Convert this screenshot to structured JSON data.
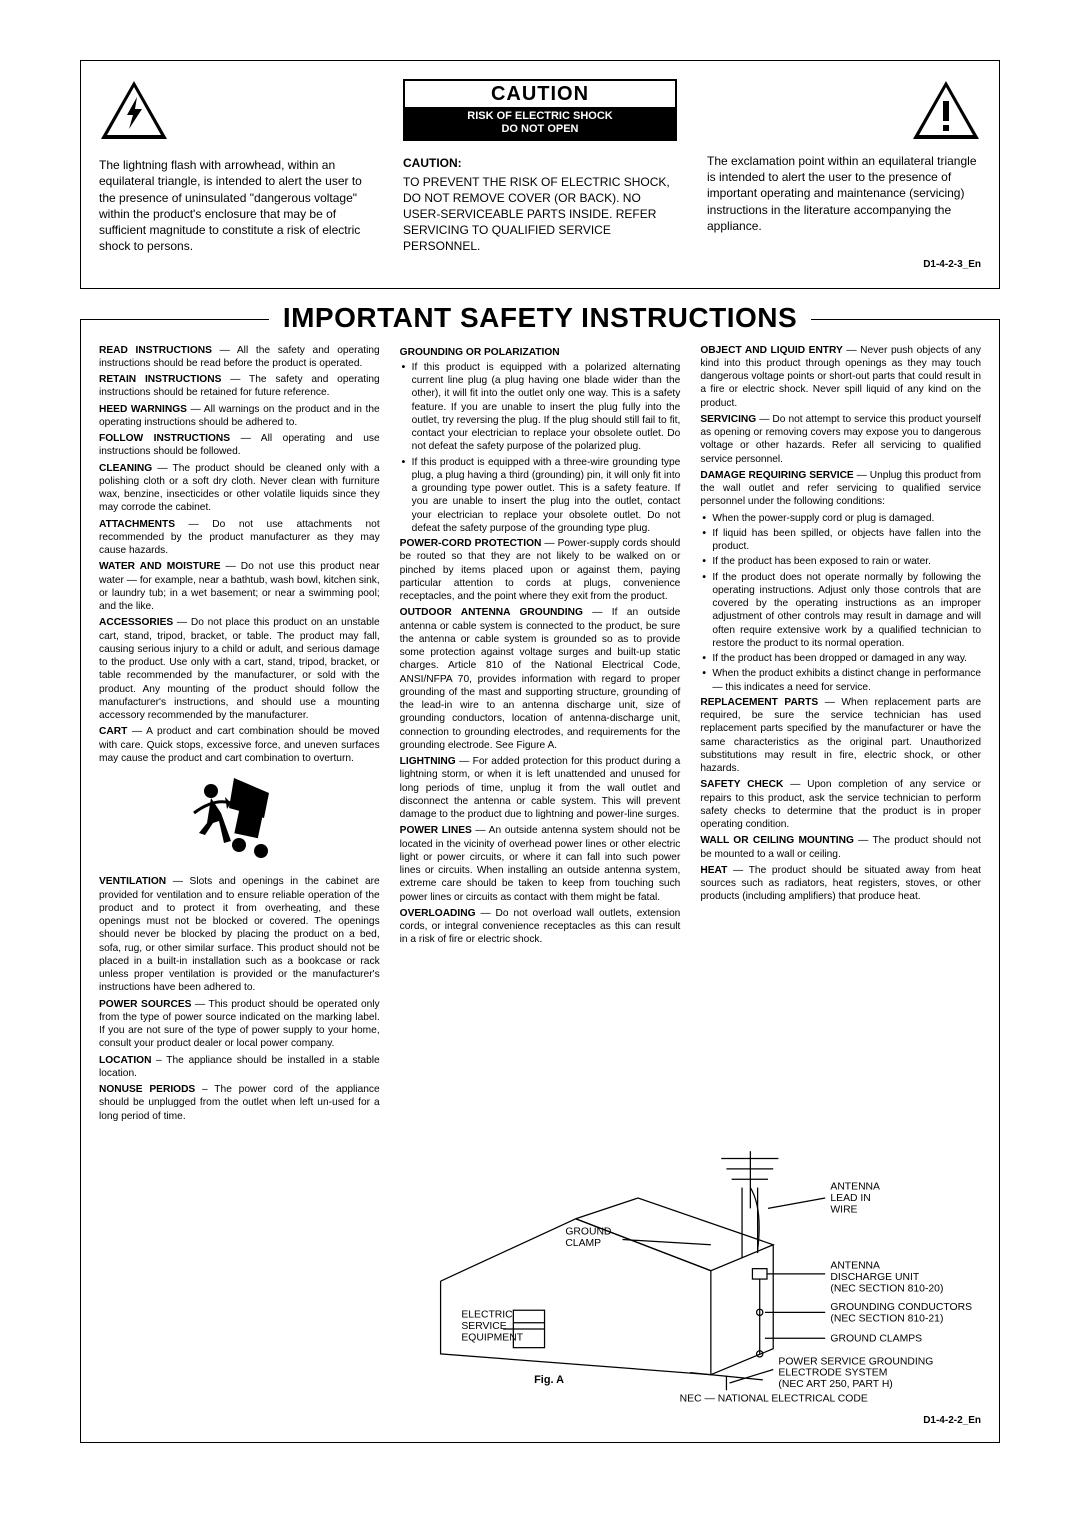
{
  "caution": {
    "title": "CAUTION",
    "sub1": "RISK OF ELECTRIC SHOCK",
    "sub2": "DO NOT OPEN",
    "left_text": "The lightning flash with arrowhead, within an equilateral triangle, is intended to alert the user to the presence of uninsulated \"dangerous voltage\" within the product's enclosure that may be of sufficient magnitude to constitute a risk of electric shock to persons.",
    "center_head": "CAUTION:",
    "center_text": "TO PREVENT THE RISK OF ELECTRIC SHOCK, DO NOT REMOVE COVER (OR BACK).  NO USER-SERVICEABLE PARTS INSIDE.  REFER SERVICING TO QUALIFIED SERVICE PERSONNEL.",
    "right_text": "The exclamation point within an equilateral triangle is intended to alert the user to the presence of important operating and maintenance (servicing) instructions in the literature accompanying the appliance.",
    "code": "D1-4-2-3_En"
  },
  "main": {
    "title": "IMPORTANT SAFETY INSTRUCTIONS",
    "code": "D1-4-2-2_En",
    "fig_a": "Fig. A",
    "nec": "NEC — NATIONAL ELECTRICAL CODE",
    "col1": [
      {
        "h": "READ INSTRUCTIONS",
        "t": " — All the safety and operating instructions should be read before the product is operated."
      },
      {
        "h": "RETAIN INSTRUCTIONS",
        "t": " — The safety and operating instructions should be retained for future reference."
      },
      {
        "h": "HEED WARNINGS",
        "t": " — All warnings on the product and in the operating instructions should be adhered to."
      },
      {
        "h": "FOLLOW INSTRUCTIONS",
        "t": " — All operating and use instructions should be followed."
      },
      {
        "h": "CLEANING",
        "t": " — The product should be cleaned only with a polishing cloth or a soft dry cloth. Never clean with furniture wax, benzine, insecticides or other volatile liquids since they may corrode the cabinet."
      },
      {
        "h": "ATTACHMENTS",
        "t": " — Do not use attachments not recommended by the product manufacturer as they may cause hazards."
      },
      {
        "h": "WATER AND MOISTURE",
        "t": " — Do not use this product near water — for example, near a bathtub, wash bowl, kitchen sink, or laundry tub; in a wet basement; or near a swimming pool; and the like."
      },
      {
        "h": "ACCESSORIES",
        "t": " — Do not place this product on an unstable cart, stand, tripod, bracket, or table. The product may fall, causing serious injury to a child or adult, and serious damage to the product. Use only with a cart, stand, tripod, bracket, or table recommended by the manufacturer, or sold with the product. Any mounting of the product should follow the manufacturer's instructions, and should use a mounting accessory recommended by the manufacturer."
      },
      {
        "h": "CART",
        "t": " — A product and cart combination should be moved with care. Quick stops, excessive force, and uneven surfaces may cause the product and cart combination to overturn."
      },
      {
        "h": "VENTILATION",
        "t": " — Slots and openings in the cabinet are provided for ventilation and to ensure reliable operation of the product and to protect it from overheating, and these openings must not be blocked or covered. The openings should never be blocked by placing the product on a bed, sofa, rug, or other similar surface. This product should not be placed in a built-in installation such as a bookcase or rack unless proper ventilation is provided or the manufacturer's instructions have been adhered to."
      },
      {
        "h": "POWER SOURCES",
        "t": " — This product should be operated only from the type of power source indicated on the marking label. If you are not sure of the type of power supply to your home, consult your product dealer or local power company."
      },
      {
        "h": "LOCATION",
        "t": " – The appliance should be installed in a stable location."
      },
      {
        "h": "NONUSE PERIODS",
        "t": " – The power cord of the appliance should be unplugged from the outlet when left un-used for a long period of time."
      }
    ],
    "col2_head": "GROUNDING OR POLARIZATION",
    "col2_bullets": [
      "If this product is equipped with a polarized alternating current line plug (a plug having one blade wider than the other), it will fit into the outlet only one way. This is a safety feature. If you are unable to insert the plug fully into the outlet, try reversing the plug. If the plug should still fail to fit, contact your electrician to replace your obsolete outlet. Do not defeat the safety purpose of the polarized plug.",
      "If this product is equipped with a three-wire grounding type plug, a plug having a third (grounding) pin, it will only fit into a grounding type power outlet. This is a safety feature. If you are unable to insert the plug into the outlet, contact your electrician to replace your obsolete outlet. Do not defeat the safety purpose of the grounding type plug."
    ],
    "col2_items": [
      {
        "h": "POWER-CORD PROTECTION",
        "t": " — Power-supply cords should be routed so that they are not likely to be walked on or pinched by items placed upon or against them, paying particular attention to cords at plugs, convenience receptacles, and the point where they exit from the product."
      },
      {
        "h": "OUTDOOR ANTENNA GROUNDING",
        "t": " — If an outside antenna or cable system is connected to the product, be sure the antenna or cable system is grounded so as to provide some protection against voltage surges and built-up static charges. Article 810 of the National Electrical Code, ANSI/NFPA 70, provides information with regard to proper grounding of the mast and supporting structure, grounding of the lead-in wire to an antenna discharge unit, size of grounding conductors, location of antenna-discharge unit, connection to grounding electrodes, and requirements for the grounding electrode. See Figure A."
      },
      {
        "h": "LIGHTNING",
        "t": " — For added protection for this product during a lightning storm, or when it is left unattended and unused for long periods of time, unplug it from the wall outlet and disconnect the antenna or cable system. This will prevent damage to the product due to lightning and power-line surges."
      },
      {
        "h": "POWER LINES",
        "t": " — An outside antenna system should not be located in the vicinity of overhead power lines or other electric light or power circuits, or where it can fall into such power lines or circuits. When installing an outside antenna system, extreme care should be taken to keep from touching such power lines or circuits as contact with them might be fatal."
      },
      {
        "h": "OVERLOADING",
        "t": " — Do not overload wall outlets, extension cords, or integral convenience receptacles as this can result in a risk of fire or electric shock."
      }
    ],
    "col3_items": [
      {
        "h": "OBJECT AND LIQUID ENTRY",
        "t": " — Never push objects of any kind into this product through openings as they may touch dangerous voltage points or short-out parts that could result in a fire or electric shock. Never spill liquid of any kind on the product."
      },
      {
        "h": "SERVICING",
        "t": " — Do not attempt to service this product yourself as opening or removing covers may expose you to dangerous voltage or other hazards. Refer all servicing to qualified service personnel."
      },
      {
        "h": "DAMAGE REQUIRING SERVICE",
        "t": " — Unplug this product from the wall outlet and refer servicing to qualified service personnel under the following conditions:"
      }
    ],
    "col3_bullets": [
      "When the power-supply cord or plug is damaged.",
      "If liquid has been spilled, or objects have fallen into the product.",
      "If the product has been exposed to rain or water.",
      "If the product does not operate normally by following the operating instructions. Adjust only those controls that are covered by the operating instructions as an improper adjustment of other controls may result in damage and will often require extensive work by a qualified technician to restore the product to its normal operation.",
      "If the product has been dropped or damaged in any way.",
      "When the product exhibits a distinct change in performance — this indicates a need for service."
    ],
    "col3_items2": [
      {
        "h": "REPLACEMENT PARTS",
        "t": " — When replacement parts are required, be sure the service technician has used replacement parts specified by the manufacturer or have the same characteristics as the original part. Unauthorized substitutions may result in fire, electric shock, or other hazards."
      },
      {
        "h": "SAFETY CHECK",
        "t": " — Upon completion of any service or repairs to this product, ask the service technician to perform safety checks to determine that the product is in proper operating condition."
      },
      {
        "h": "WALL OR CEILING MOUNTING",
        "t": " — The product should not be mounted to a wall or ceiling."
      },
      {
        "h": "HEAT",
        "t": " — The product should be situated away from heat sources such as radiators, heat registers, stoves, or other products (including amplifiers) that produce heat."
      }
    ],
    "antenna_labels": {
      "lead_in": "ANTENNA LEAD IN WIRE",
      "clamp": "GROUND CLAMP",
      "discharge": "ANTENNA DISCHARGE UNIT (NEC SECTION 810-20)",
      "conductors": "GROUNDING CONDUCTORS (NEC SECTION 810-21)",
      "clamps": "GROUND CLAMPS",
      "electric": "ELECTRIC SERVICE EQUIPMENT",
      "electrode": "POWER SERVICE GROUNDING ELECTRODE SYSTEM (NEC ART 250, PART H)"
    }
  }
}
